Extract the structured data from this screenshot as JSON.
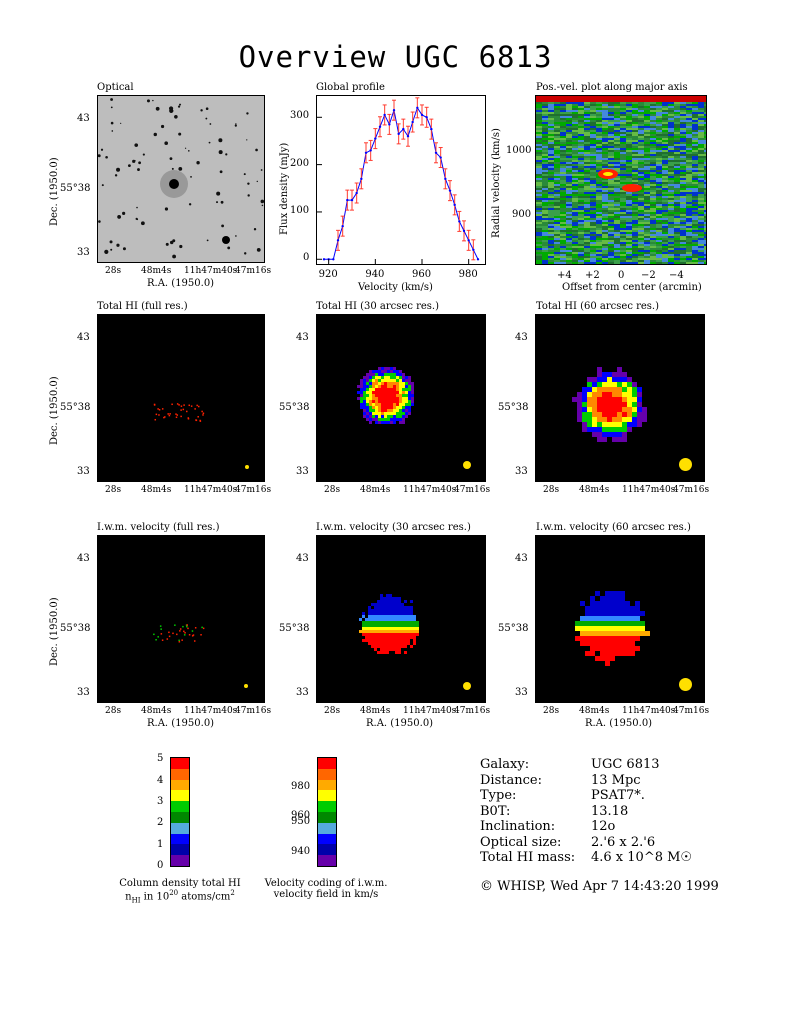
{
  "title": "Overview UGC 6813",
  "panels": {
    "optical": "Optical",
    "global_profile": "Global profile",
    "pv": "Pos.-vel. plot along major axis",
    "hi_full": "Total HI (full res.)",
    "hi_30": "Total HI (30 arcsec res.)",
    "hi_60": "Total HI (60 arcsec res.)",
    "vel_full": "I.w.m. velocity (full res.)",
    "vel_30": "I.w.m. velocity (30 arcsec res.)",
    "vel_60": "I.w.m. velocity (60 arcsec res.)"
  },
  "axes": {
    "dec_label": "Dec. (1950.0)",
    "ra_label": "R.A. (1950.0)",
    "dec_ticks": [
      "43",
      "55°38",
      "33"
    ],
    "ra_ticks": [
      "28s",
      "48m4s",
      "11h47m40s",
      "47m16s"
    ],
    "flux_label": "Flux density (mJy)",
    "velocity_label": "Velocity (km/s)",
    "radial_label": "Radial velocity (km/s)",
    "offset_label": "Offset from center (arcmin)",
    "pv_yticks": [
      "1000",
      "900"
    ],
    "pv_xticks": [
      "+4",
      "+2",
      "0",
      "−2",
      "−4"
    ]
  },
  "chart_data": {
    "type": "line",
    "title": "Global profile",
    "xlabel": "Velocity (km/s)",
    "ylabel": "Flux density (mJy)",
    "xlim": [
      915,
      987
    ],
    "ylim": [
      -10,
      345
    ],
    "xticks": [
      920,
      940,
      960,
      980
    ],
    "yticks": [
      0,
      100,
      200,
      300
    ],
    "x": [
      918,
      920,
      922,
      924,
      926,
      928,
      930,
      932,
      934,
      936,
      938,
      940,
      942,
      944,
      946,
      948,
      950,
      952,
      954,
      956,
      958,
      960,
      962,
      964,
      966,
      968,
      970,
      972,
      974,
      976,
      978,
      980,
      982,
      984
    ],
    "series": [
      {
        "values": [
          0,
          0,
          0,
          40,
          70,
          125,
          125,
          140,
          170,
          225,
          230,
          255,
          280,
          305,
          285,
          315,
          265,
          275,
          260,
          290,
          320,
          305,
          300,
          275,
          225,
          215,
          170,
          145,
          115,
          80,
          60,
          40,
          20,
          0
        ]
      }
    ]
  },
  "colorbars": {
    "density_ticks": [
      "5",
      "4",
      "3",
      "2",
      "1",
      "0"
    ],
    "velocity_ticks": [
      "980",
      "960",
      "950",
      "940"
    ],
    "density_caption_1": "Column density total HI",
    "density_caption_2a": "n",
    "density_caption_2b": "HI",
    "density_caption_2c": " in 10",
    "density_caption_2d": "20",
    "density_caption_2e": " atoms/cm",
    "density_caption_2f": "2",
    "velocity_caption_1": "Velocity coding of i.w.m.",
    "velocity_caption_2": "velocity field in km/s",
    "colors": [
      "#ff0000",
      "#ff6600",
      "#ffaa00",
      "#ffff00",
      "#00cc00",
      "#008800",
      "#55aadd",
      "#0000ff",
      "#0000aa",
      "#6600aa"
    ]
  },
  "info": {
    "rows": [
      {
        "label": "Galaxy:",
        "value": "UGC 6813"
      },
      {
        "label": "Distance:",
        "value": "13 Mpc"
      },
      {
        "label": "Type:",
        "value": "PSAT7*."
      },
      {
        "label": "B0T:",
        "value": "13.18"
      },
      {
        "label": "Inclination:",
        "value": "12o"
      },
      {
        "label": "Optical size:",
        "value": "2.'6 x 2.'6"
      },
      {
        "label": "Total HI mass:",
        "value": "4.6 x 10^8 M☉"
      }
    ],
    "footer": "© WHISP, Wed Apr  7 14:43:20 1999"
  }
}
